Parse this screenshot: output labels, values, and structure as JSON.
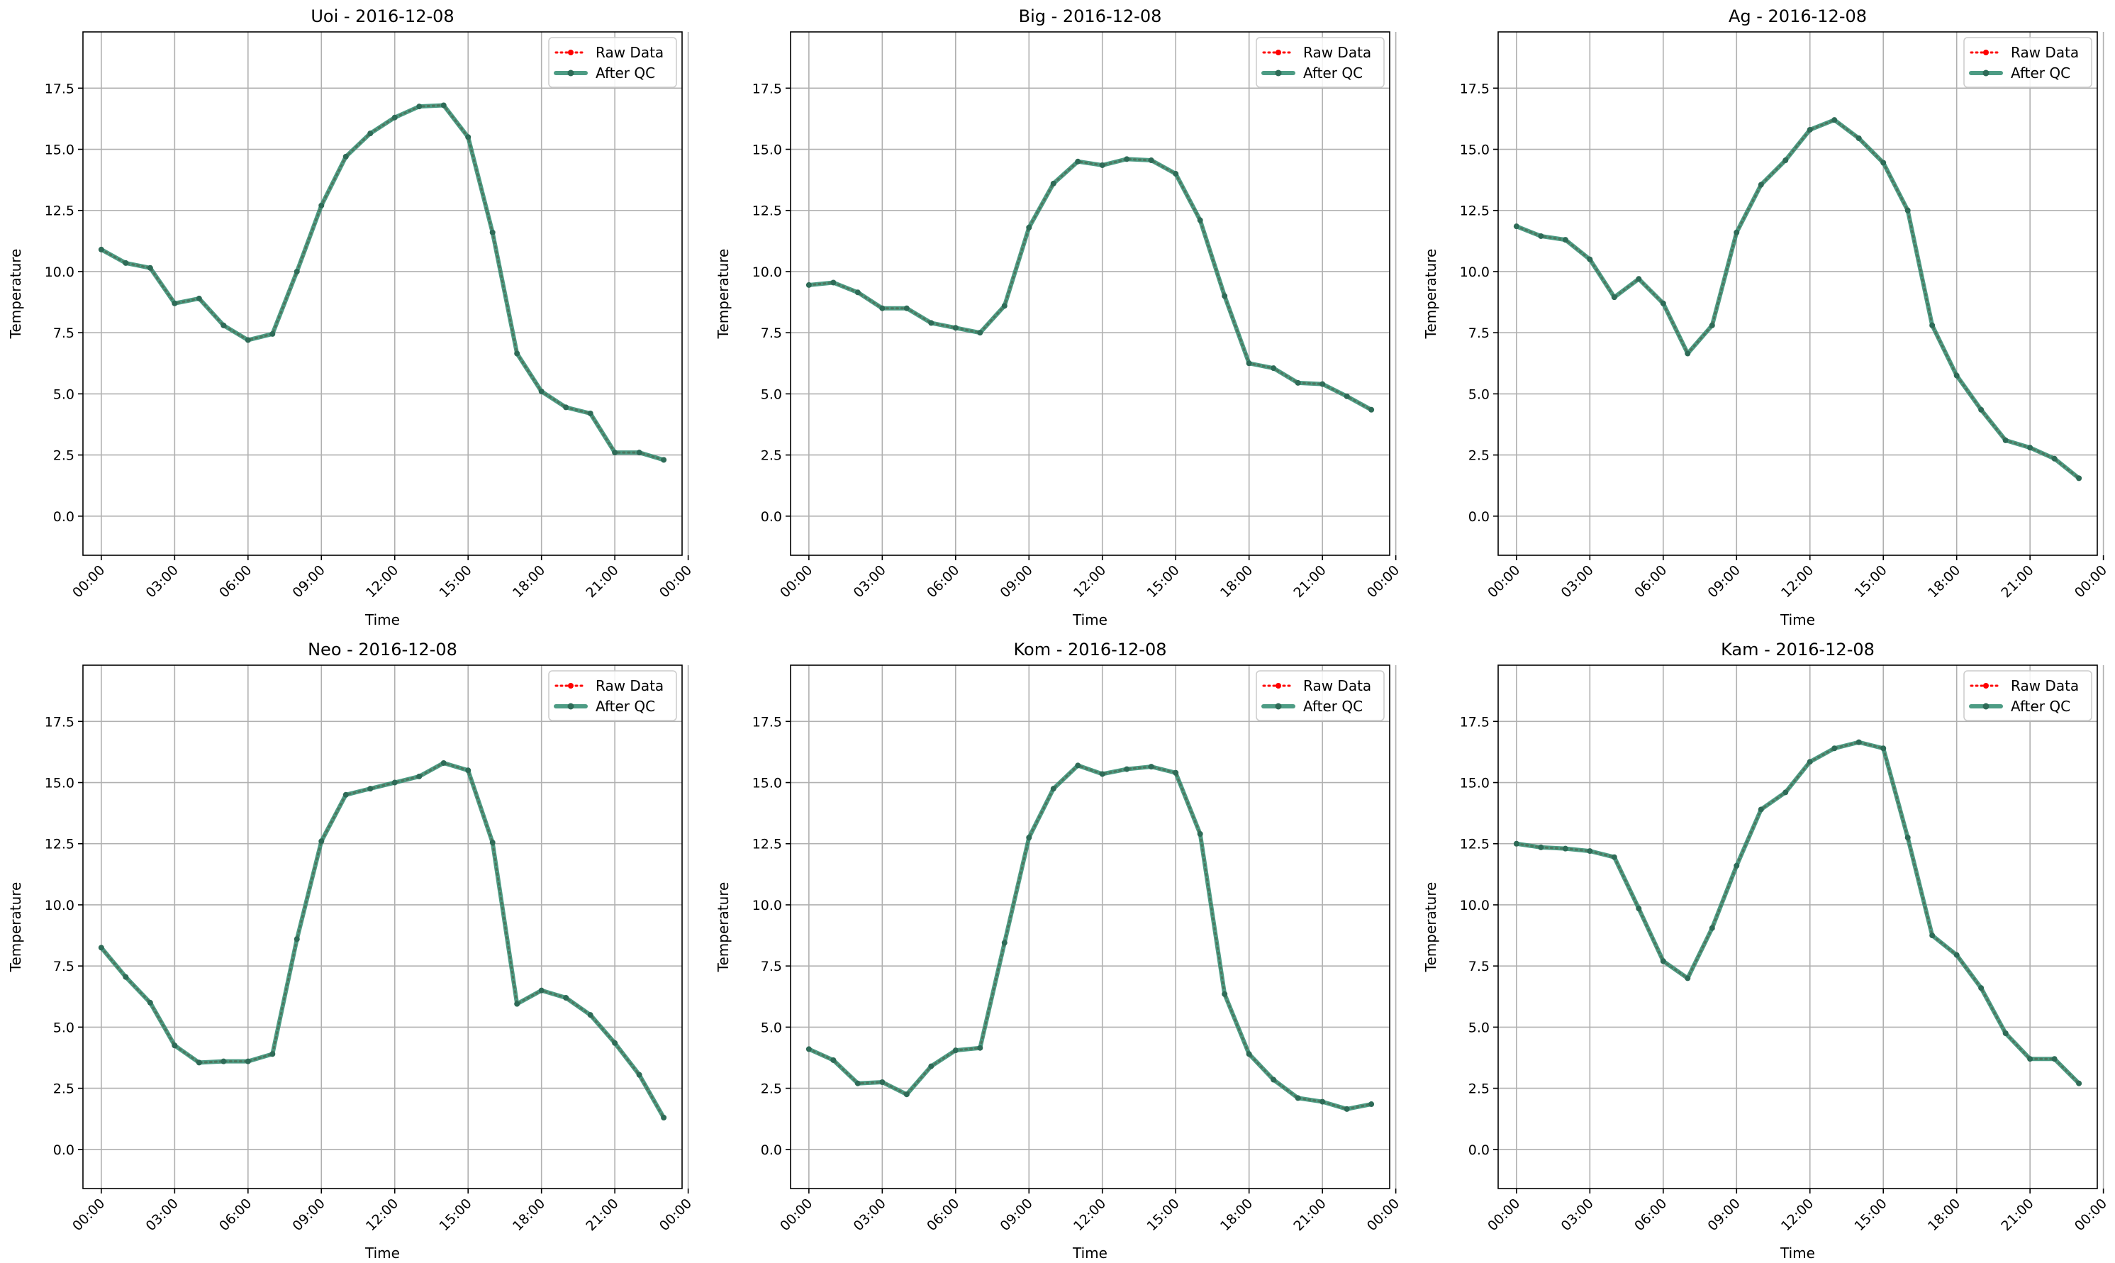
{
  "figure": {
    "background": "#ffffff"
  },
  "style": {
    "raw_color": "#ff0000",
    "qc_color": "#2e8b6e",
    "qc_marker_color": "#2e6b57",
    "grid_color": "#b0b0b0"
  },
  "chart_data": [
    {
      "type": "line",
      "title": "Uoi - 2016-12-08",
      "xlabel": "Time",
      "ylabel": "Temperature",
      "xlim": [
        -0.75,
        23.75
      ],
      "ylim": [
        -1.6,
        19.8
      ],
      "yticks": [
        0.0,
        2.5,
        5.0,
        7.5,
        10.0,
        12.5,
        15.0,
        17.5
      ],
      "xtick_hours": [
        0,
        3,
        6,
        9,
        12,
        15,
        18,
        21,
        24
      ],
      "xtick_labels": [
        "00:00",
        "03:00",
        "06:00",
        "09:00",
        "12:00",
        "15:00",
        "18:00",
        "21:00",
        "00:00"
      ],
      "grid": true,
      "legend_position": "top-right",
      "x": [
        0,
        1,
        2,
        3,
        4,
        5,
        6,
        7,
        8,
        9,
        10,
        11,
        12,
        13,
        14,
        15,
        16,
        17,
        18,
        19,
        20,
        21,
        22,
        23
      ],
      "series": [
        {
          "name": "Raw Data",
          "values": [
            10.9,
            10.35,
            10.15,
            8.7,
            8.9,
            7.8,
            7.2,
            7.45,
            10.0,
            12.7,
            14.7,
            15.65,
            16.3,
            16.75,
            16.8,
            15.5,
            11.6,
            6.65,
            5.1,
            4.45,
            4.2,
            2.6,
            2.6,
            2.3
          ]
        },
        {
          "name": "After QC",
          "values": [
            10.9,
            10.35,
            10.15,
            8.7,
            8.9,
            7.8,
            7.2,
            7.45,
            10.0,
            12.7,
            14.7,
            15.65,
            16.3,
            16.75,
            16.8,
            15.5,
            11.6,
            6.65,
            5.1,
            4.45,
            4.2,
            2.6,
            2.6,
            2.3
          ]
        }
      ]
    },
    {
      "type": "line",
      "title": "Big - 2016-12-08",
      "xlabel": "Time",
      "ylabel": "Temperature",
      "xlim": [
        -0.75,
        23.75
      ],
      "ylim": [
        -1.6,
        19.8
      ],
      "yticks": [
        0.0,
        2.5,
        5.0,
        7.5,
        10.0,
        12.5,
        15.0,
        17.5
      ],
      "xtick_hours": [
        0,
        3,
        6,
        9,
        12,
        15,
        18,
        21,
        24
      ],
      "xtick_labels": [
        "00:00",
        "03:00",
        "06:00",
        "09:00",
        "12:00",
        "15:00",
        "18:00",
        "21:00",
        "00:00"
      ],
      "grid": true,
      "legend_position": "top-right",
      "x": [
        0,
        1,
        2,
        3,
        4,
        5,
        6,
        7,
        8,
        9,
        10,
        11,
        12,
        13,
        14,
        15,
        16,
        17,
        18,
        19,
        20,
        21,
        22,
        23
      ],
      "series": [
        {
          "name": "Raw Data",
          "values": [
            9.45,
            9.55,
            9.15,
            8.5,
            8.5,
            7.9,
            7.7,
            7.5,
            8.6,
            11.8,
            13.6,
            14.5,
            14.35,
            14.6,
            14.55,
            14.0,
            12.1,
            9.0,
            6.25,
            6.05,
            5.45,
            5.4,
            4.9,
            4.35
          ]
        },
        {
          "name": "After QC",
          "values": [
            9.45,
            9.55,
            9.15,
            8.5,
            8.5,
            7.9,
            7.7,
            7.5,
            8.6,
            11.8,
            13.6,
            14.5,
            14.35,
            14.6,
            14.55,
            14.0,
            12.1,
            9.0,
            6.25,
            6.05,
            5.45,
            5.4,
            4.9,
            4.35
          ]
        }
      ]
    },
    {
      "type": "line",
      "title": "Ag - 2016-12-08",
      "xlabel": "Time",
      "ylabel": "Temperature",
      "xlim": [
        -0.75,
        23.75
      ],
      "ylim": [
        -1.6,
        19.8
      ],
      "yticks": [
        0.0,
        2.5,
        5.0,
        7.5,
        10.0,
        12.5,
        15.0,
        17.5
      ],
      "xtick_hours": [
        0,
        3,
        6,
        9,
        12,
        15,
        18,
        21,
        24
      ],
      "xtick_labels": [
        "00:00",
        "03:00",
        "06:00",
        "09:00",
        "12:00",
        "15:00",
        "18:00",
        "21:00",
        "00:00"
      ],
      "grid": true,
      "legend_position": "top-right",
      "x": [
        0,
        1,
        2,
        3,
        4,
        5,
        6,
        7,
        8,
        9,
        10,
        11,
        12,
        13,
        14,
        15,
        16,
        17,
        18,
        19,
        20,
        21,
        22,
        23
      ],
      "series": [
        {
          "name": "Raw Data",
          "values": [
            11.85,
            11.45,
            11.3,
            10.5,
            8.95,
            9.7,
            8.7,
            6.65,
            7.8,
            11.6,
            13.55,
            14.55,
            15.8,
            16.2,
            15.45,
            14.45,
            12.5,
            7.8,
            5.75,
            4.35,
            3.1,
            2.8,
            2.35,
            1.55
          ]
        },
        {
          "name": "After QC",
          "values": [
            11.85,
            11.45,
            11.3,
            10.5,
            8.95,
            9.7,
            8.7,
            6.65,
            7.8,
            11.6,
            13.55,
            14.55,
            15.8,
            16.2,
            15.45,
            14.45,
            12.5,
            7.8,
            5.75,
            4.35,
            3.1,
            2.8,
            2.35,
            1.55
          ]
        }
      ]
    },
    {
      "type": "line",
      "title": "Neo - 2016-12-08",
      "xlabel": "Time",
      "ylabel": "Temperature",
      "xlim": [
        -0.75,
        23.75
      ],
      "ylim": [
        -1.6,
        19.8
      ],
      "yticks": [
        0.0,
        2.5,
        5.0,
        7.5,
        10.0,
        12.5,
        15.0,
        17.5
      ],
      "xtick_hours": [
        0,
        3,
        6,
        9,
        12,
        15,
        18,
        21,
        24
      ],
      "xtick_labels": [
        "00:00",
        "03:00",
        "06:00",
        "09:00",
        "12:00",
        "15:00",
        "18:00",
        "21:00",
        "00:00"
      ],
      "grid": true,
      "legend_position": "top-right",
      "x": [
        0,
        1,
        2,
        3,
        4,
        5,
        6,
        7,
        8,
        9,
        10,
        11,
        12,
        13,
        14,
        15,
        16,
        17,
        18,
        19,
        20,
        21,
        22,
        23
      ],
      "series": [
        {
          "name": "Raw Data",
          "values": [
            8.25,
            7.05,
            6.0,
            4.25,
            3.55,
            3.6,
            3.6,
            3.9,
            8.6,
            12.6,
            14.5,
            14.75,
            15.0,
            15.25,
            15.8,
            15.5,
            12.55,
            5.95,
            6.5,
            6.2,
            5.5,
            4.35,
            3.05,
            1.3
          ]
        },
        {
          "name": "After QC",
          "values": [
            8.25,
            7.05,
            6.0,
            4.25,
            3.55,
            3.6,
            3.6,
            3.9,
            8.6,
            12.6,
            14.5,
            14.75,
            15.0,
            15.25,
            15.8,
            15.5,
            12.55,
            5.95,
            6.5,
            6.2,
            5.5,
            4.35,
            3.05,
            1.3
          ]
        }
      ]
    },
    {
      "type": "line",
      "title": "Kom - 2016-12-08",
      "xlabel": "Time",
      "ylabel": "Temperature",
      "xlim": [
        -0.75,
        23.75
      ],
      "ylim": [
        -1.6,
        19.8
      ],
      "yticks": [
        0.0,
        2.5,
        5.0,
        7.5,
        10.0,
        12.5,
        15.0,
        17.5
      ],
      "xtick_hours": [
        0,
        3,
        6,
        9,
        12,
        15,
        18,
        21,
        24
      ],
      "xtick_labels": [
        "00:00",
        "03:00",
        "06:00",
        "09:00",
        "12:00",
        "15:00",
        "18:00",
        "21:00",
        "00:00"
      ],
      "grid": true,
      "legend_position": "top-right",
      "x": [
        0,
        1,
        2,
        3,
        4,
        5,
        6,
        7,
        8,
        9,
        10,
        11,
        12,
        13,
        14,
        15,
        16,
        17,
        18,
        19,
        20,
        21,
        22,
        23
      ],
      "series": [
        {
          "name": "Raw Data",
          "values": [
            4.1,
            3.65,
            2.7,
            2.75,
            2.25,
            3.4,
            4.05,
            4.15,
            8.45,
            12.75,
            14.75,
            15.7,
            15.35,
            15.55,
            15.65,
            15.4,
            12.9,
            6.35,
            3.9,
            2.85,
            2.1,
            1.95,
            1.65,
            1.85
          ]
        },
        {
          "name": "After QC",
          "values": [
            4.1,
            3.65,
            2.7,
            2.75,
            2.25,
            3.4,
            4.05,
            4.15,
            8.45,
            12.75,
            14.75,
            15.7,
            15.35,
            15.55,
            15.65,
            15.4,
            12.9,
            6.35,
            3.9,
            2.85,
            2.1,
            1.95,
            1.65,
            1.85
          ]
        }
      ]
    },
    {
      "type": "line",
      "title": "Kam - 2016-12-08",
      "xlabel": "Time",
      "ylabel": "Temperature",
      "xlim": [
        -0.75,
        23.75
      ],
      "ylim": [
        -1.6,
        19.8
      ],
      "yticks": [
        0.0,
        2.5,
        5.0,
        7.5,
        10.0,
        12.5,
        15.0,
        17.5
      ],
      "xtick_hours": [
        0,
        3,
        6,
        9,
        12,
        15,
        18,
        21,
        24
      ],
      "xtick_labels": [
        "00:00",
        "03:00",
        "06:00",
        "09:00",
        "12:00",
        "15:00",
        "18:00",
        "21:00",
        "00:00"
      ],
      "grid": true,
      "legend_position": "top-right",
      "x": [
        0,
        1,
        2,
        3,
        4,
        5,
        6,
        7,
        8,
        9,
        10,
        11,
        12,
        13,
        14,
        15,
        16,
        17,
        18,
        19,
        20,
        21,
        22,
        23
      ],
      "series": [
        {
          "name": "Raw Data",
          "values": [
            12.5,
            12.35,
            12.3,
            12.2,
            11.95,
            9.85,
            7.7,
            7.0,
            9.05,
            11.6,
            13.9,
            14.6,
            15.85,
            16.4,
            16.65,
            16.4,
            12.75,
            8.75,
            7.95,
            6.6,
            4.75,
            3.7,
            3.7,
            2.7
          ]
        },
        {
          "name": "After QC",
          "values": [
            12.5,
            12.35,
            12.3,
            12.2,
            11.95,
            9.85,
            7.7,
            7.0,
            9.05,
            11.6,
            13.9,
            14.6,
            15.85,
            16.4,
            16.65,
            16.4,
            12.75,
            8.75,
            7.95,
            6.6,
            4.75,
            3.7,
            3.7,
            2.7
          ]
        }
      ]
    }
  ]
}
